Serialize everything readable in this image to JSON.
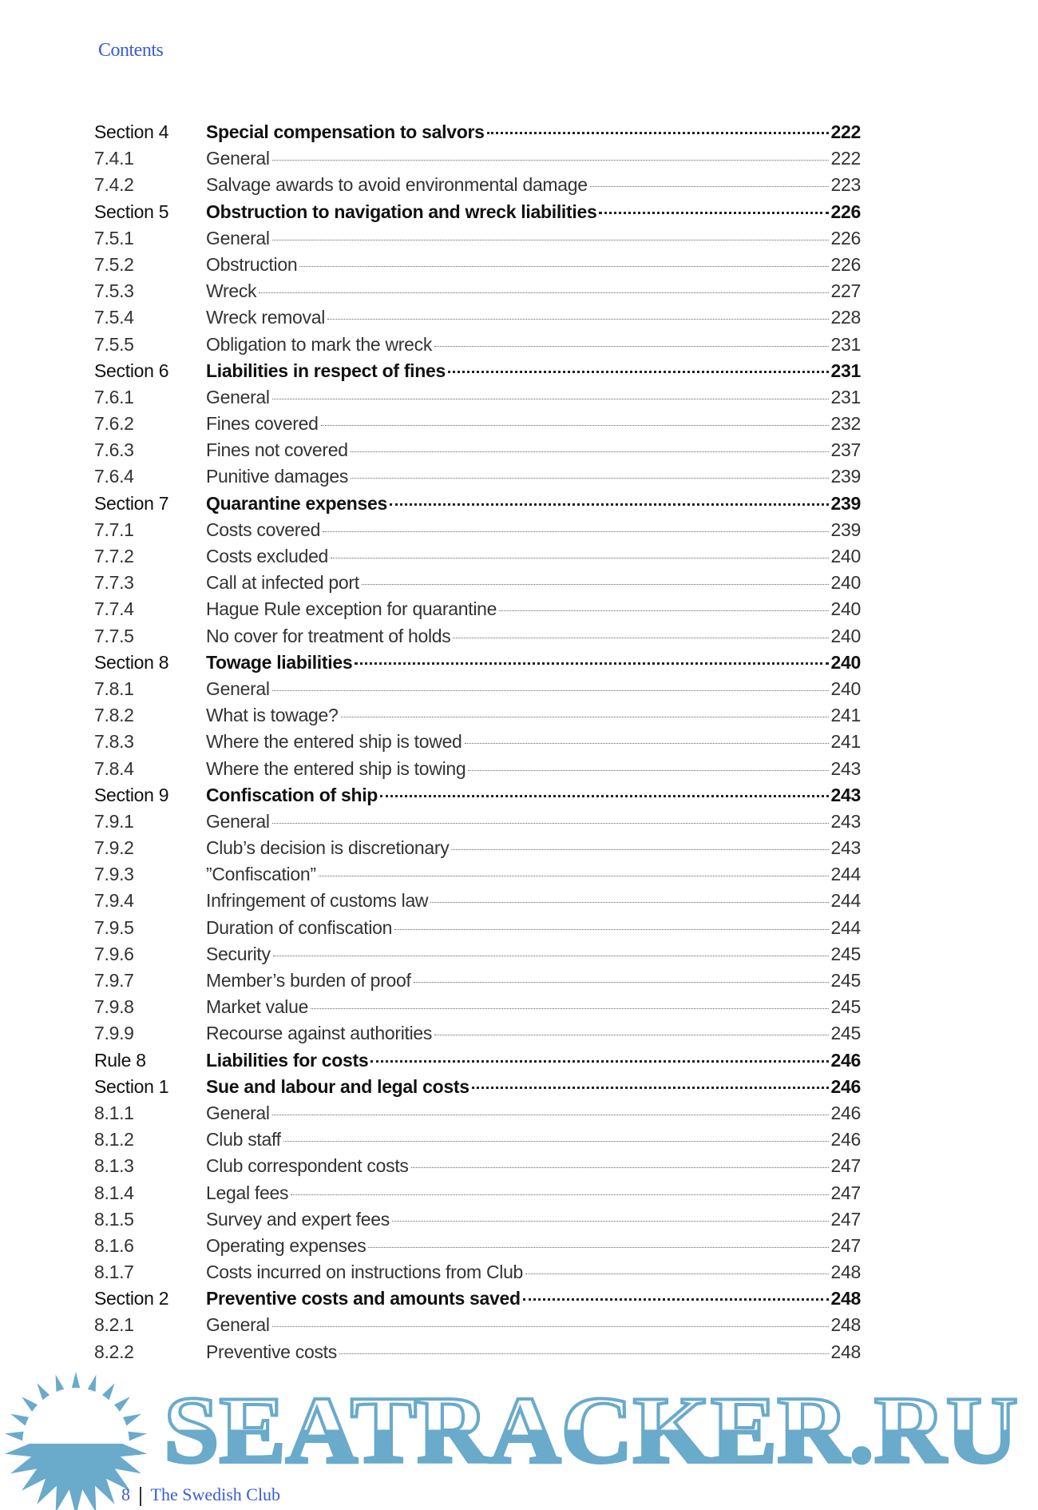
{
  "header": {
    "title": "Contents"
  },
  "toc": [
    {
      "num": "Section 4",
      "title": "Special compensation to salvors",
      "page": "222",
      "bold": true
    },
    {
      "num": "7.4.1",
      "title": "General",
      "page": "222"
    },
    {
      "num": "7.4.2",
      "title": "Salvage awards to avoid environmental damage",
      "page": "223"
    },
    {
      "num": "Section 5",
      "title": "Obstruction to navigation and wreck liabilities",
      "page": "226",
      "bold": true
    },
    {
      "num": "7.5.1",
      "title": "General",
      "page": "226"
    },
    {
      "num": "7.5.2",
      "title": "Obstruction",
      "page": "226"
    },
    {
      "num": "7.5.3",
      "title": "Wreck",
      "page": "227"
    },
    {
      "num": "7.5.4",
      "title": "Wreck removal",
      "page": "228"
    },
    {
      "num": "7.5.5",
      "title": "Obligation to mark the wreck",
      "page": "231"
    },
    {
      "num": "Section 6",
      "title": "Liabilities in respect of fines",
      "page": "231",
      "bold": true
    },
    {
      "num": "7.6.1",
      "title": "General",
      "page": "231"
    },
    {
      "num": "7.6.2",
      "title": "Fines covered",
      "page": "232"
    },
    {
      "num": "7.6.3",
      "title": "Fines not covered",
      "page": "237"
    },
    {
      "num": "7.6.4",
      "title": "Punitive damages",
      "page": "239"
    },
    {
      "num": "Section 7",
      "title": "Quarantine expenses",
      "page": "239",
      "bold": true
    },
    {
      "num": "7.7.1",
      "title": "Costs covered",
      "page": "239"
    },
    {
      "num": "7.7.2",
      "title": "Costs excluded",
      "page": "240"
    },
    {
      "num": "7.7.3",
      "title": "Call at infected port",
      "page": "240"
    },
    {
      "num": "7.7.4",
      "title": "Hague Rule exception for quarantine",
      "page": "240"
    },
    {
      "num": "7.7.5",
      "title": "No cover for treatment of holds",
      "page": "240"
    },
    {
      "num": "Section 8",
      "title": "Towage liabilities",
      "page": "240",
      "bold": true
    },
    {
      "num": "7.8.1",
      "title": "General",
      "page": "240"
    },
    {
      "num": "7.8.2",
      "title": "What is towage?",
      "page": "241"
    },
    {
      "num": "7.8.3",
      "title": "Where the entered ship is towed",
      "page": "241"
    },
    {
      "num": "7.8.4",
      "title": "Where the entered ship is towing",
      "page": "243"
    },
    {
      "num": "Section 9",
      "title": "Confiscation of ship",
      "page": "243",
      "bold": true
    },
    {
      "num": "7.9.1",
      "title": "General",
      "page": "243"
    },
    {
      "num": "7.9.2",
      "title": "Club’s decision is discretionary",
      "page": "243"
    },
    {
      "num": "7.9.3",
      "title": "”Confiscation”",
      "page": "244"
    },
    {
      "num": "7.9.4",
      "title": "Infringement of customs law",
      "page": "244"
    },
    {
      "num": "7.9.5",
      "title": "Duration of confiscation",
      "page": "244"
    },
    {
      "num": "7.9.6",
      "title": "Security",
      "page": "245"
    },
    {
      "num": "7.9.7",
      "title": "Member’s burden of proof",
      "page": "245"
    },
    {
      "num": "7.9.8",
      "title": "Market value",
      "page": "245"
    },
    {
      "num": "7.9.9",
      "title": "Recourse against authorities",
      "page": "245"
    },
    {
      "num": "Rule 8",
      "title": "Liabilities for costs",
      "page": "246",
      "bold": true
    },
    {
      "num": "Section 1",
      "title": "Sue and labour and legal costs",
      "page": "246",
      "bold": true
    },
    {
      "num": "8.1.1",
      "title": "General",
      "page": "246"
    },
    {
      "num": "8.1.2",
      "title": "Club staff",
      "page": "246"
    },
    {
      "num": "8.1.3",
      "title": "Club correspondent costs",
      "page": "247"
    },
    {
      "num": "8.1.4",
      "title": "Legal fees",
      "page": "247"
    },
    {
      "num": "8.1.5",
      "title": "Survey and expert fees",
      "page": "247"
    },
    {
      "num": "8.1.6",
      "title": "Operating expenses",
      "page": "247"
    },
    {
      "num": "8.1.7",
      "title": "Costs incurred on instructions from Club",
      "page": "248"
    },
    {
      "num": "Section 2",
      "title": "Preventive costs and amounts saved",
      "page": "248",
      "bold": true
    },
    {
      "num": "8.2.1",
      "title": "General",
      "page": "248"
    },
    {
      "num": "8.2.2",
      "title": "Preventive costs",
      "page": "248"
    }
  ],
  "footer": {
    "page_number": "8",
    "publisher": "The Swedish Club"
  },
  "watermark": {
    "text": "SEATRACKER.RU",
    "color": "#6aaacb"
  },
  "colors": {
    "accent": "#3a5bd9"
  }
}
